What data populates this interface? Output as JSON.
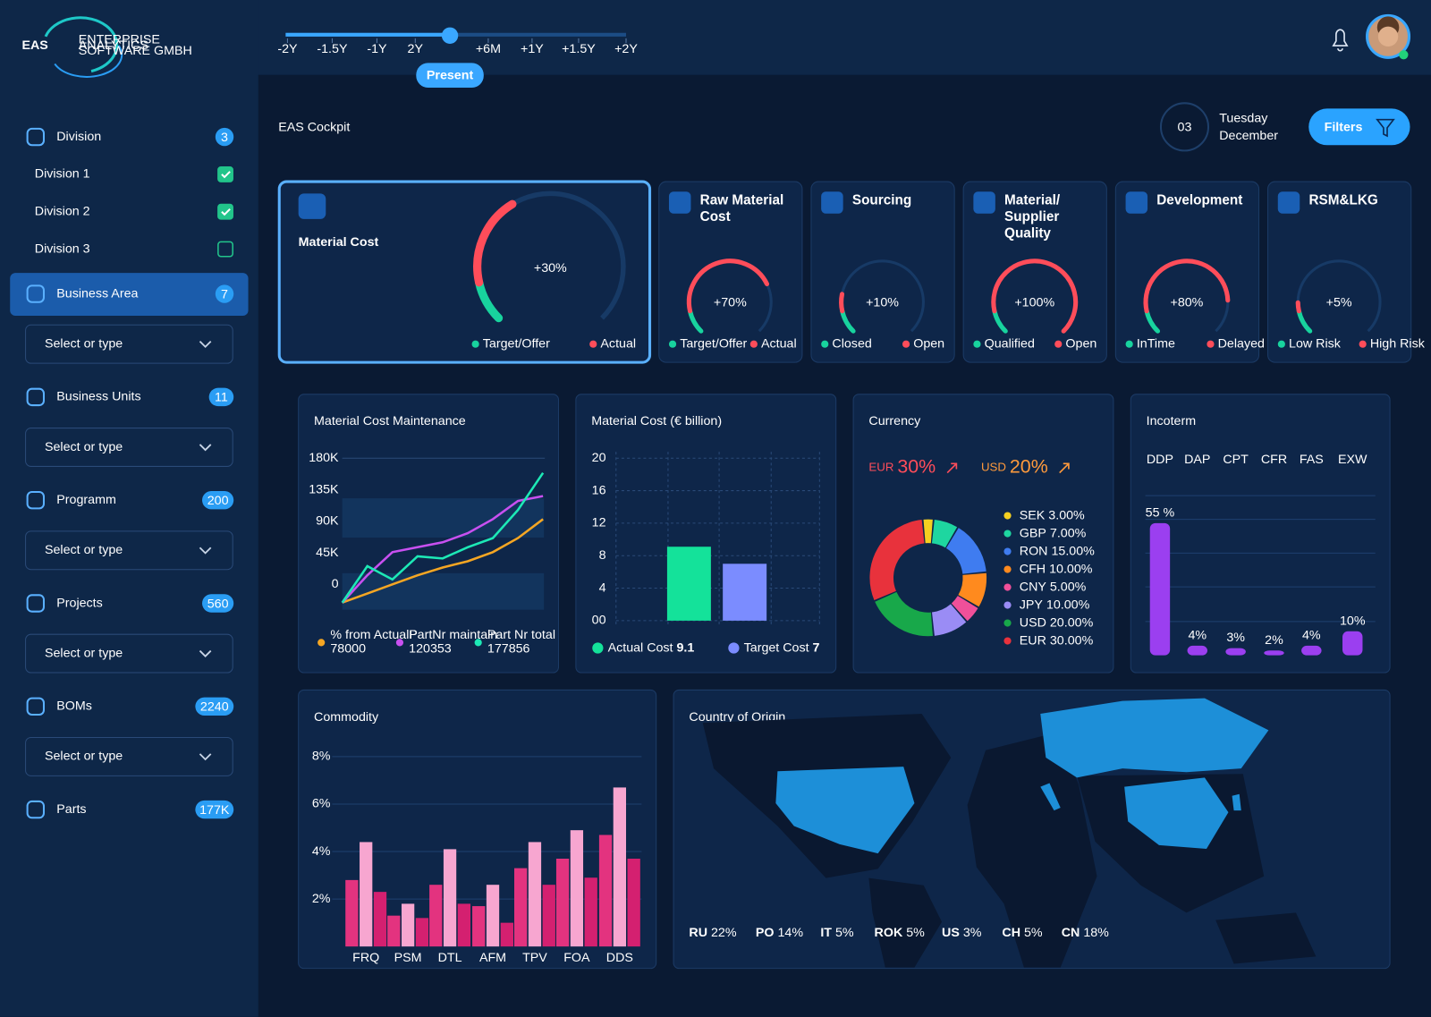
{
  "header": {
    "logo": "EAS",
    "logo_subtitle": [
      "ENTERPRISE",
      "ANALYTICS",
      "SOFTWARE GMBH"
    ],
    "timeline": [
      "-2Y",
      "-1.5Y",
      "-1Y",
      "2Y",
      "+6M",
      "+1Y",
      "+1.5Y",
      "+2Y"
    ],
    "present": "Present"
  },
  "sidebar": {
    "items": [
      {
        "label": "Division",
        "count": 3,
        "options": [
          {
            "label": "Division 1",
            "checked": true
          },
          {
            "label": "Division 2",
            "checked": true
          },
          {
            "label": "Division 3",
            "checked": false
          }
        ]
      },
      {
        "label": "Business Area",
        "count": 7,
        "active": true,
        "placeholder": "Select or type"
      },
      {
        "label": "Business Units",
        "count": 11,
        "placeholder": "Select or type"
      },
      {
        "label": "Programm",
        "count": 200,
        "placeholder": "Select or type"
      },
      {
        "label": "Projects",
        "count": 560,
        "placeholder": "Select or type"
      },
      {
        "label": "BOMs",
        "count": 2240,
        "placeholder": "Select or type"
      },
      {
        "label": "Parts",
        "count": "177K"
      }
    ]
  },
  "page": {
    "title": "EAS Cockpit",
    "day": "03",
    "weekday": "Tuesday",
    "month": "December",
    "filters": "Filters"
  },
  "kpis": [
    {
      "title": "Material Cost",
      "value": 30,
      "value_label": "+30%",
      "legend": [
        "Target/Offer",
        "Actual"
      ]
    },
    {
      "title": "Raw Material Cost",
      "value": 70,
      "value_label": "+70%",
      "legend": [
        "Target/Offer",
        "Actual"
      ]
    },
    {
      "title": "Sourcing",
      "value": 10,
      "value_label": "+10%",
      "legend": [
        "Closed",
        "Open"
      ]
    },
    {
      "title": "Material/ Supplier Quality",
      "value": 100,
      "value_label": "+100%",
      "legend": [
        "Qualified",
        "Open"
      ]
    },
    {
      "title": "Development",
      "value": 80,
      "value_label": "+80%",
      "legend": [
        "InTime",
        "Delayed"
      ]
    },
    {
      "title": "RSM&LKG",
      "value": 5,
      "value_label": "+5%",
      "legend": [
        "Low Risk",
        "High Risk"
      ]
    }
  ],
  "cost_maintenance": {
    "type": "line",
    "title": "Material Cost Maintenance",
    "ylim": [
      -40000,
      180000
    ],
    "yticks": [
      {
        "value": 180000,
        "label": "180K"
      },
      {
        "value": 135000,
        "label": "135K"
      },
      {
        "value": 90000,
        "label": "90K"
      },
      {
        "value": 45000,
        "label": "45K"
      },
      0
    ],
    "series": [
      {
        "name": "% from ActualP",
        "color": "#f5a623",
        "total": 78000,
        "values": [
          -26000,
          -13000,
          0,
          13000,
          24000,
          33000,
          46000,
          66000,
          93000
        ]
      },
      {
        "name": "PartNr maintain",
        "color": "#c850f0",
        "total": 120353,
        "values": [
          -26000,
          13000,
          46000,
          53000,
          60000,
          73000,
          93000,
          119000,
          126000
        ]
      },
      {
        "name": "Part Nr total",
        "color": "#1de9b6",
        "total": 177856,
        "values": [
          -26000,
          26000,
          7000,
          40000,
          37000,
          53000,
          66000,
          106000,
          159000
        ]
      }
    ]
  },
  "material_cost": {
    "type": "bar",
    "title": "Material Cost (€ billion)",
    "ylim": [
      0,
      20
    ],
    "yticks": [
      20,
      16,
      12,
      8,
      4,
      {
        "value": 0,
        "label": "00"
      }
    ],
    "series": [
      {
        "name": "Actual Cost",
        "color": "#14e29a",
        "values": [
          9.1
        ]
      },
      {
        "name": "Target Cost",
        "color": "#7b8cff",
        "values": [
          7
        ]
      }
    ]
  },
  "currency": {
    "type": "pie",
    "title": "Currency",
    "headline": [
      {
        "code": "EUR",
        "value_label": "30%",
        "color": "#ff4d5a"
      },
      {
        "code": "USD",
        "value_label": "20%",
        "color": "#ff9a3c"
      }
    ],
    "categories": [
      "SEK",
      "GBP",
      "RON",
      "CFH",
      "CNY",
      "JPY",
      "USD",
      "EUR"
    ],
    "values": [
      3,
      7,
      15,
      10,
      5,
      10,
      20,
      30
    ],
    "value_labels": [
      "3.00%",
      "7.00%",
      "15.00%",
      "10.00%",
      "5.00%",
      "10.00%",
      "20.00%",
      "30.00%"
    ],
    "colors": [
      "#f5d020",
      "#1ed6a0",
      "#3f7cf0",
      "#ff8a1e",
      "#f0509a",
      "#9a8cf5",
      "#18a84a",
      "#e8323c"
    ]
  },
  "incoterm": {
    "type": "bar",
    "title": "Incoterm",
    "categories": [
      "DDP",
      "DAP",
      "CPT",
      "CFR",
      "FAS",
      "EXW"
    ],
    "values": [
      55,
      4,
      3,
      2,
      4,
      10
    ],
    "value_labels": [
      "55 %",
      "4%",
      "3%",
      "2%",
      "4%",
      "10%"
    ],
    "color": "#9b3ff0",
    "ylim": [
      0,
      60
    ],
    "grid": true
  },
  "commodity": {
    "type": "bar",
    "title": "Commodity",
    "categories": [
      "FRQ",
      "PSM",
      "DTL",
      "AFM",
      "TPV",
      "FOA",
      "DDS"
    ],
    "ylim": [
      0,
      8
    ],
    "yticks": [
      {
        "value": 8,
        "label": "8%"
      },
      {
        "value": 6,
        "label": "6%"
      },
      {
        "value": 4,
        "label": "4%"
      },
      {
        "value": 2,
        "label": "2%"
      }
    ],
    "series": [
      {
        "color": "#e3337f",
        "values": [
          2.8,
          1.3,
          2.6,
          1.7,
          3.3,
          3.7,
          4.7
        ]
      },
      {
        "color": "#f7a6d0",
        "values": [
          4.4,
          1.8,
          4.1,
          2.6,
          4.4,
          4.9,
          6.7
        ]
      },
      {
        "color": "#d42070",
        "values": [
          2.3,
          1.2,
          1.8,
          1.0,
          2.6,
          2.9,
          3.7
        ]
      }
    ]
  },
  "origin": {
    "title": "Country of Origin",
    "countries": [
      {
        "code": "RU",
        "value_label": "22%"
      },
      {
        "code": "PO",
        "value_label": "14%"
      },
      {
        "code": "IT",
        "value_label": "5%"
      },
      {
        "code": "ROK",
        "value_label": "5%"
      },
      {
        "code": "US",
        "value_label": "3%"
      },
      {
        "code": "CH",
        "value_label": "5%"
      },
      {
        "code": "CN",
        "value_label": "18%"
      }
    ]
  }
}
